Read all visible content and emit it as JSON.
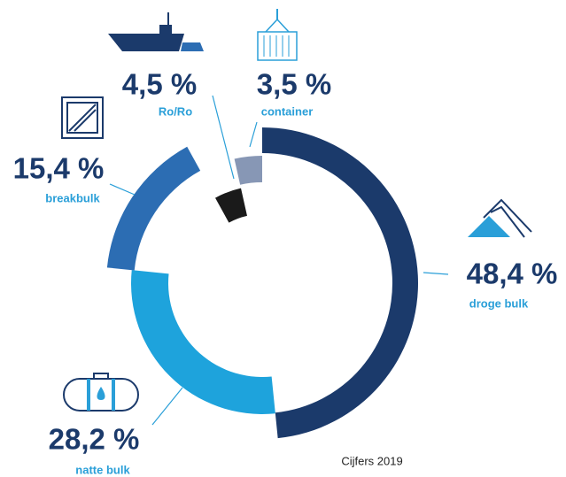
{
  "chart_data": {
    "type": "donut",
    "categories": [
      "droge bulk",
      "natte bulk",
      "breakbulk",
      "Ro/Ro",
      "container"
    ],
    "values": [
      48.4,
      28.2,
      15.4,
      4.5,
      3.5
    ],
    "value_labels": [
      "48,4 %",
      "28,2 %",
      "15,4 %",
      "4,5 %",
      "3,5 %"
    ],
    "colors": [
      "#1b3a6b",
      "#1ea3dc",
      "#2c6db3",
      "#1a1a1a",
      "#8797b5"
    ],
    "note": "Cijfers 2019"
  }
}
